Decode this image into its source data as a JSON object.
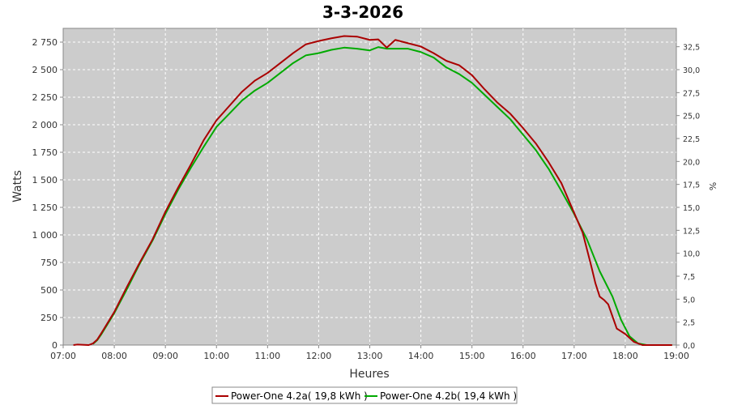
{
  "chart_data": {
    "type": "line",
    "title": "3-3-2026",
    "xlabel": "Heures",
    "ylabel": "Watts",
    "ylabel_right": "%",
    "xlim": [
      "07:00",
      "19:00"
    ],
    "ylim": [
      0,
      2875
    ],
    "ylim_right": [
      0,
      34.5
    ],
    "x_ticks": [
      "07:00",
      "08:00",
      "09:00",
      "10:00",
      "11:00",
      "12:00",
      "13:00",
      "14:00",
      "15:00",
      "16:00",
      "17:00",
      "18:00",
      "19:00"
    ],
    "y_ticks": [
      0,
      250,
      500,
      750,
      1000,
      1250,
      1500,
      1750,
      2000,
      2250,
      2500,
      2750
    ],
    "y_tick_labels": [
      "0",
      "250",
      "500",
      "750",
      "1 000",
      "1 250",
      "1 500",
      "1 750",
      "2 000",
      "2 250",
      "2 500",
      "2 750"
    ],
    "y_right_ticks": [
      0,
      2.5,
      5,
      7.5,
      10,
      12.5,
      15,
      17.5,
      20,
      22.5,
      25,
      27.5,
      30,
      32.5
    ],
    "y_right_tick_labels": [
      "0,0",
      "2,5",
      "5,0",
      "7,5",
      "10,0",
      "12,5",
      "15,0",
      "17,5",
      "20,0",
      "22,5",
      "25,0",
      "27,5",
      "30,0",
      "32,5"
    ],
    "grid": true,
    "plot_background": "#cccccc",
    "legend_position": "bottom",
    "series": [
      {
        "name": "Power-One 4.2a( 19,8 kWh )",
        "color": "#aa0000",
        "points": [
          [
            "07:12",
            0
          ],
          [
            "07:17",
            5
          ],
          [
            "07:30",
            0
          ],
          [
            "07:35",
            15
          ],
          [
            "07:40",
            50
          ],
          [
            "07:45",
            110
          ],
          [
            "08:00",
            300
          ],
          [
            "08:15",
            530
          ],
          [
            "08:30",
            750
          ],
          [
            "08:45",
            960
          ],
          [
            "09:00",
            1210
          ],
          [
            "09:15",
            1430
          ],
          [
            "09:30",
            1640
          ],
          [
            "09:45",
            1860
          ],
          [
            "10:00",
            2040
          ],
          [
            "10:15",
            2170
          ],
          [
            "10:30",
            2300
          ],
          [
            "10:45",
            2400
          ],
          [
            "11:00",
            2470
          ],
          [
            "11:15",
            2560
          ],
          [
            "11:30",
            2650
          ],
          [
            "11:45",
            2730
          ],
          [
            "12:00",
            2760
          ],
          [
            "12:15",
            2785
          ],
          [
            "12:30",
            2805
          ],
          [
            "12:45",
            2800
          ],
          [
            "13:00",
            2770
          ],
          [
            "13:10",
            2775
          ],
          [
            "13:20",
            2700
          ],
          [
            "13:30",
            2770
          ],
          [
            "13:45",
            2740
          ],
          [
            "14:00",
            2710
          ],
          [
            "14:15",
            2650
          ],
          [
            "14:30",
            2580
          ],
          [
            "14:45",
            2540
          ],
          [
            "15:00",
            2450
          ],
          [
            "15:15",
            2320
          ],
          [
            "15:30",
            2200
          ],
          [
            "15:45",
            2100
          ],
          [
            "16:00",
            1970
          ],
          [
            "16:15",
            1830
          ],
          [
            "16:30",
            1660
          ],
          [
            "16:45",
            1470
          ],
          [
            "17:00",
            1200
          ],
          [
            "17:10",
            1020
          ],
          [
            "17:20",
            720
          ],
          [
            "17:25",
            560
          ],
          [
            "17:30",
            440
          ],
          [
            "17:35",
            410
          ],
          [
            "17:40",
            370
          ],
          [
            "17:45",
            260
          ],
          [
            "17:50",
            150
          ],
          [
            "18:00",
            100
          ],
          [
            "18:10",
            30
          ],
          [
            "18:20",
            0
          ],
          [
            "18:55",
            0
          ]
        ]
      },
      {
        "name": "Power-One 4.2b( 19,4 kWh )",
        "color": "#00aa00",
        "points": [
          [
            "07:35",
            10
          ],
          [
            "07:40",
            45
          ],
          [
            "07:45",
            100
          ],
          [
            "08:00",
            290
          ],
          [
            "08:15",
            510
          ],
          [
            "08:30",
            740
          ],
          [
            "08:45",
            950
          ],
          [
            "09:00",
            1190
          ],
          [
            "09:15",
            1410
          ],
          [
            "09:30",
            1610
          ],
          [
            "09:45",
            1800
          ],
          [
            "10:00",
            1980
          ],
          [
            "10:15",
            2100
          ],
          [
            "10:30",
            2220
          ],
          [
            "10:45",
            2310
          ],
          [
            "11:00",
            2380
          ],
          [
            "11:15",
            2470
          ],
          [
            "11:30",
            2560
          ],
          [
            "11:45",
            2630
          ],
          [
            "12:00",
            2650
          ],
          [
            "12:15",
            2680
          ],
          [
            "12:30",
            2700
          ],
          [
            "12:45",
            2690
          ],
          [
            "13:00",
            2675
          ],
          [
            "13:10",
            2705
          ],
          [
            "13:20",
            2690
          ],
          [
            "13:30",
            2690
          ],
          [
            "13:45",
            2690
          ],
          [
            "14:00",
            2660
          ],
          [
            "14:15",
            2610
          ],
          [
            "14:30",
            2520
          ],
          [
            "14:45",
            2460
          ],
          [
            "15:00",
            2380
          ],
          [
            "15:15",
            2270
          ],
          [
            "15:30",
            2160
          ],
          [
            "15:45",
            2050
          ],
          [
            "16:00",
            1910
          ],
          [
            "16:15",
            1770
          ],
          [
            "16:30",
            1600
          ],
          [
            "16:45",
            1400
          ],
          [
            "17:00",
            1190
          ],
          [
            "17:15",
            960
          ],
          [
            "17:30",
            670
          ],
          [
            "17:45",
            440
          ],
          [
            "17:55",
            230
          ],
          [
            "18:05",
            80
          ],
          [
            "18:15",
            15
          ],
          [
            "18:25",
            0
          ],
          [
            "18:55",
            0
          ]
        ]
      }
    ]
  }
}
